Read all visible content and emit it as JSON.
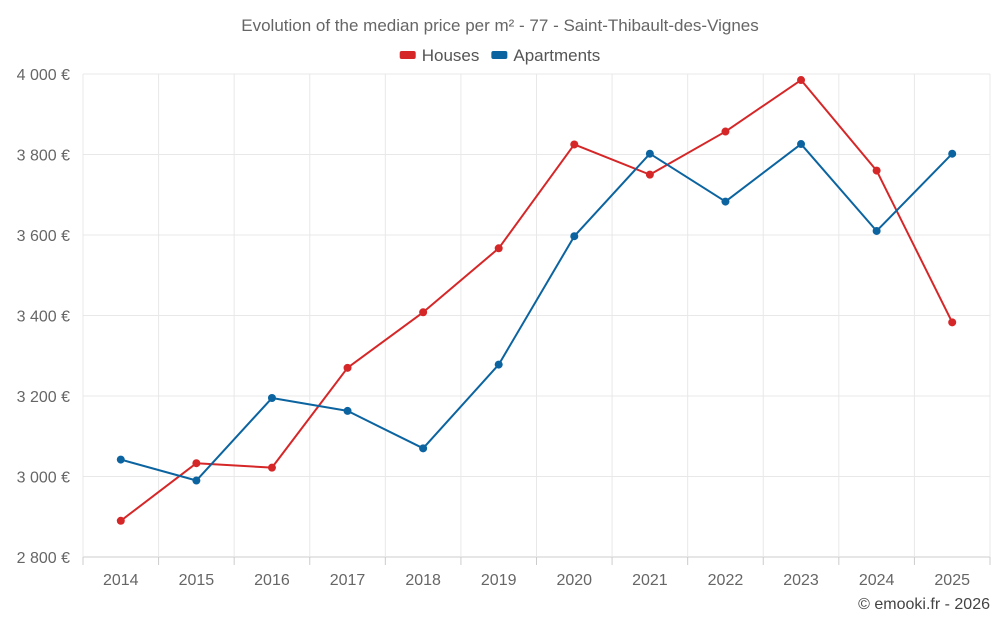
{
  "chart_data": {
    "type": "line",
    "title": "Evolution of the median price per m² - 77 - Saint-Thibault-des-Vignes",
    "categories": [
      "2014",
      "2015",
      "2016",
      "2017",
      "2018",
      "2019",
      "2020",
      "2021",
      "2022",
      "2023",
      "2024",
      "2025"
    ],
    "series": [
      {
        "name": "Houses",
        "color": "#d62728",
        "values": [
          2890,
          3033,
          3022,
          3270,
          3408,
          3567,
          3825,
          3750,
          3857,
          3985,
          3760,
          3383
        ]
      },
      {
        "name": "Apartments",
        "color": "#0b64a0",
        "values": [
          3042,
          2990,
          3195,
          3163,
          3070,
          3278,
          3597,
          3802,
          3683,
          3826,
          3610,
          3802
        ]
      }
    ],
    "ylim": [
      2800,
      4000
    ],
    "yticks": [
      2800,
      3000,
      3200,
      3400,
      3600,
      3800,
      4000
    ],
    "ytick_labels": [
      "2 800 €",
      "3 000 €",
      "3 200 €",
      "3 400 €",
      "3 600 €",
      "3 800 €",
      "4 000 €"
    ],
    "xlabel": "",
    "ylabel": "",
    "legend_position": "top-center",
    "grid": true
  },
  "credit": "© emooki.fr - 2026"
}
